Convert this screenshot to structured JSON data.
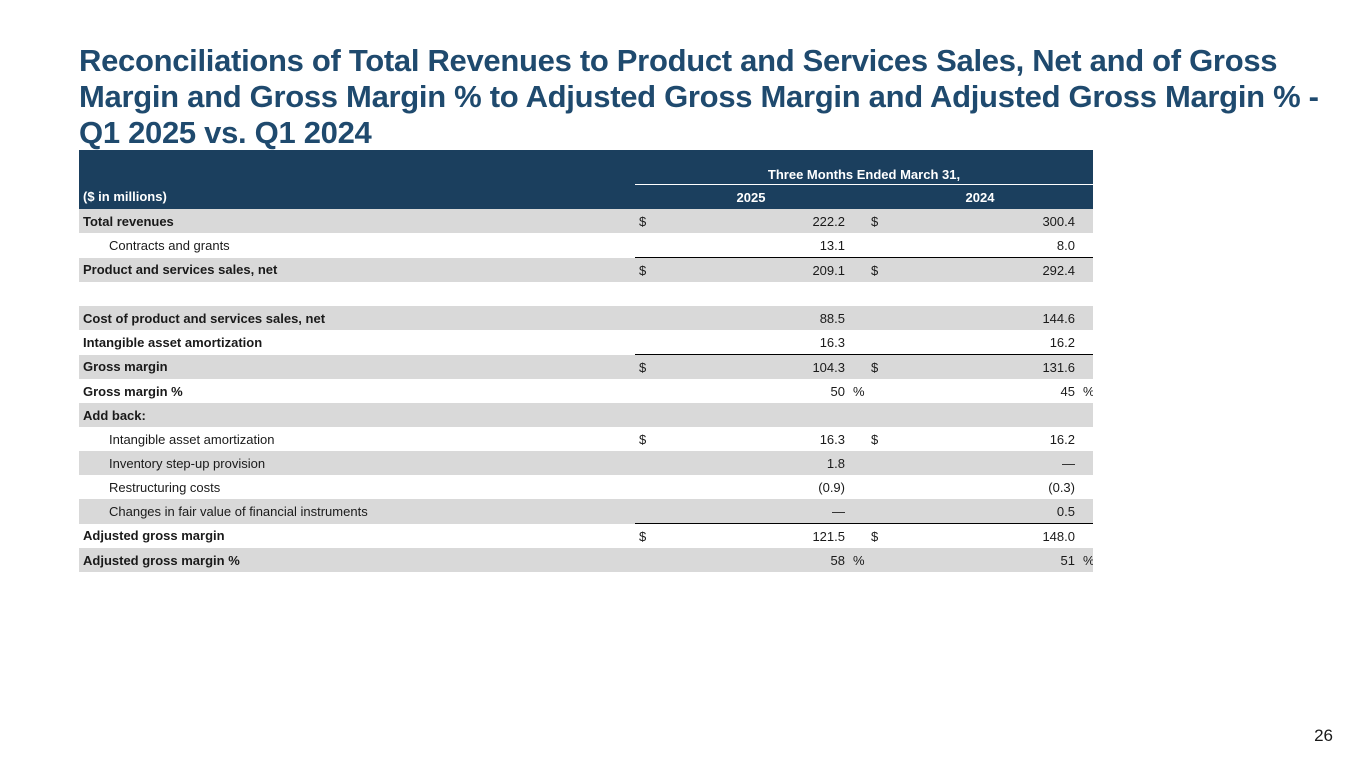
{
  "header": {
    "title": "Reconciliations of Total Revenues to Product and Services Sales, Net and of Gross Margin and Gross Margin % to Adjusted Gross Margin and Adjusted Gross Margin % - Q1 2025 vs. Q1 2024"
  },
  "table": {
    "period": "Three Months Ended March 31,",
    "units": "($ in millions)",
    "years": [
      "2025",
      "2024"
    ],
    "rows": [
      {
        "label": "Total revenues",
        "c1": "$",
        "v1": "222.2",
        "c2": "$",
        "v2": "300.4"
      },
      {
        "label": "Contracts and grants",
        "v1": "13.1",
        "v2": "8.0"
      },
      {
        "label": "Product and services sales, net",
        "c1": "$",
        "v1": "209.1",
        "c2": "$",
        "v2": "292.4"
      },
      {
        "label": "Cost of product and services sales, net",
        "v1": "88.5",
        "v2": "144.6"
      },
      {
        "label": "Intangible asset amortization",
        "v1": "16.3",
        "v2": "16.2"
      },
      {
        "label": "Gross margin",
        "c1": "$",
        "v1": "104.3",
        "c2": "$",
        "v2": "131.6"
      },
      {
        "label": "Gross margin %",
        "v1": "50",
        "p1": "%",
        "v2": "45",
        "p2": "%"
      },
      {
        "label": "Add back:"
      },
      {
        "label": "Intangible asset amortization",
        "c1": "$",
        "v1": "16.3",
        "c2": "$",
        "v2": "16.2"
      },
      {
        "label": "Inventory step-up provision",
        "v1": "1.8",
        "v2": "—"
      },
      {
        "label": "Restructuring costs",
        "v1": "(0.9)",
        "v2": "(0.3)"
      },
      {
        "label": "Changes in fair value of financial instruments",
        "v1": "—",
        "v2": "0.5"
      },
      {
        "label": "Adjusted gross margin",
        "c1": "$",
        "v1": "121.5",
        "c2": "$",
        "v2": "148.0"
      },
      {
        "label": "Adjusted gross margin %",
        "v1": "58",
        "p1": "%",
        "v2": "51",
        "p2": "%"
      }
    ]
  },
  "footer": {
    "page": "26"
  }
}
